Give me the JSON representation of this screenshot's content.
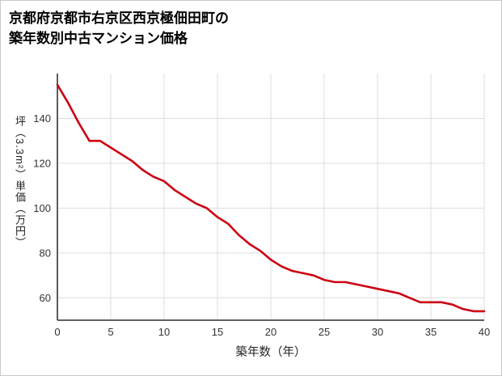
{
  "header": {
    "title_line1": "京都府京都市右京区西京極佃田町の",
    "title_line2": "築年数別中古マンション価格"
  },
  "chart_data": {
    "type": "line",
    "title": "京都府京都市右京区西京極佃田町の築年数別中古マンション価格",
    "xlabel": "築年数（年）",
    "ylabel": "坪（3.3m²）単価（万円）",
    "x": [
      0,
      1,
      2,
      3,
      4,
      5,
      6,
      7,
      8,
      9,
      10,
      11,
      12,
      13,
      14,
      15,
      16,
      17,
      18,
      19,
      20,
      21,
      22,
      23,
      24,
      25,
      26,
      27,
      28,
      29,
      30,
      31,
      32,
      33,
      34,
      35,
      36,
      37,
      38,
      39,
      40
    ],
    "values": [
      155,
      147,
      138,
      130,
      130,
      127,
      124,
      121,
      117,
      114,
      112,
      108,
      105,
      102,
      100,
      96,
      93,
      88,
      84,
      81,
      77,
      74,
      72,
      71,
      70,
      68,
      67,
      67,
      66,
      65,
      64,
      63,
      62,
      60,
      58,
      58,
      58,
      57,
      55,
      54,
      54
    ],
    "xlim": [
      0,
      40
    ],
    "ylim": [
      50,
      160
    ],
    "x_ticks": [
      0,
      5,
      10,
      15,
      20,
      25,
      30,
      35,
      40
    ],
    "y_ticks": [
      60,
      80,
      100,
      120,
      140
    ],
    "grid": true,
    "legend": false,
    "line_color": "#cc0011",
    "grid_color": "#dddddd",
    "axis_color": "#4a4a4a",
    "tick_text_color": "#333333"
  }
}
